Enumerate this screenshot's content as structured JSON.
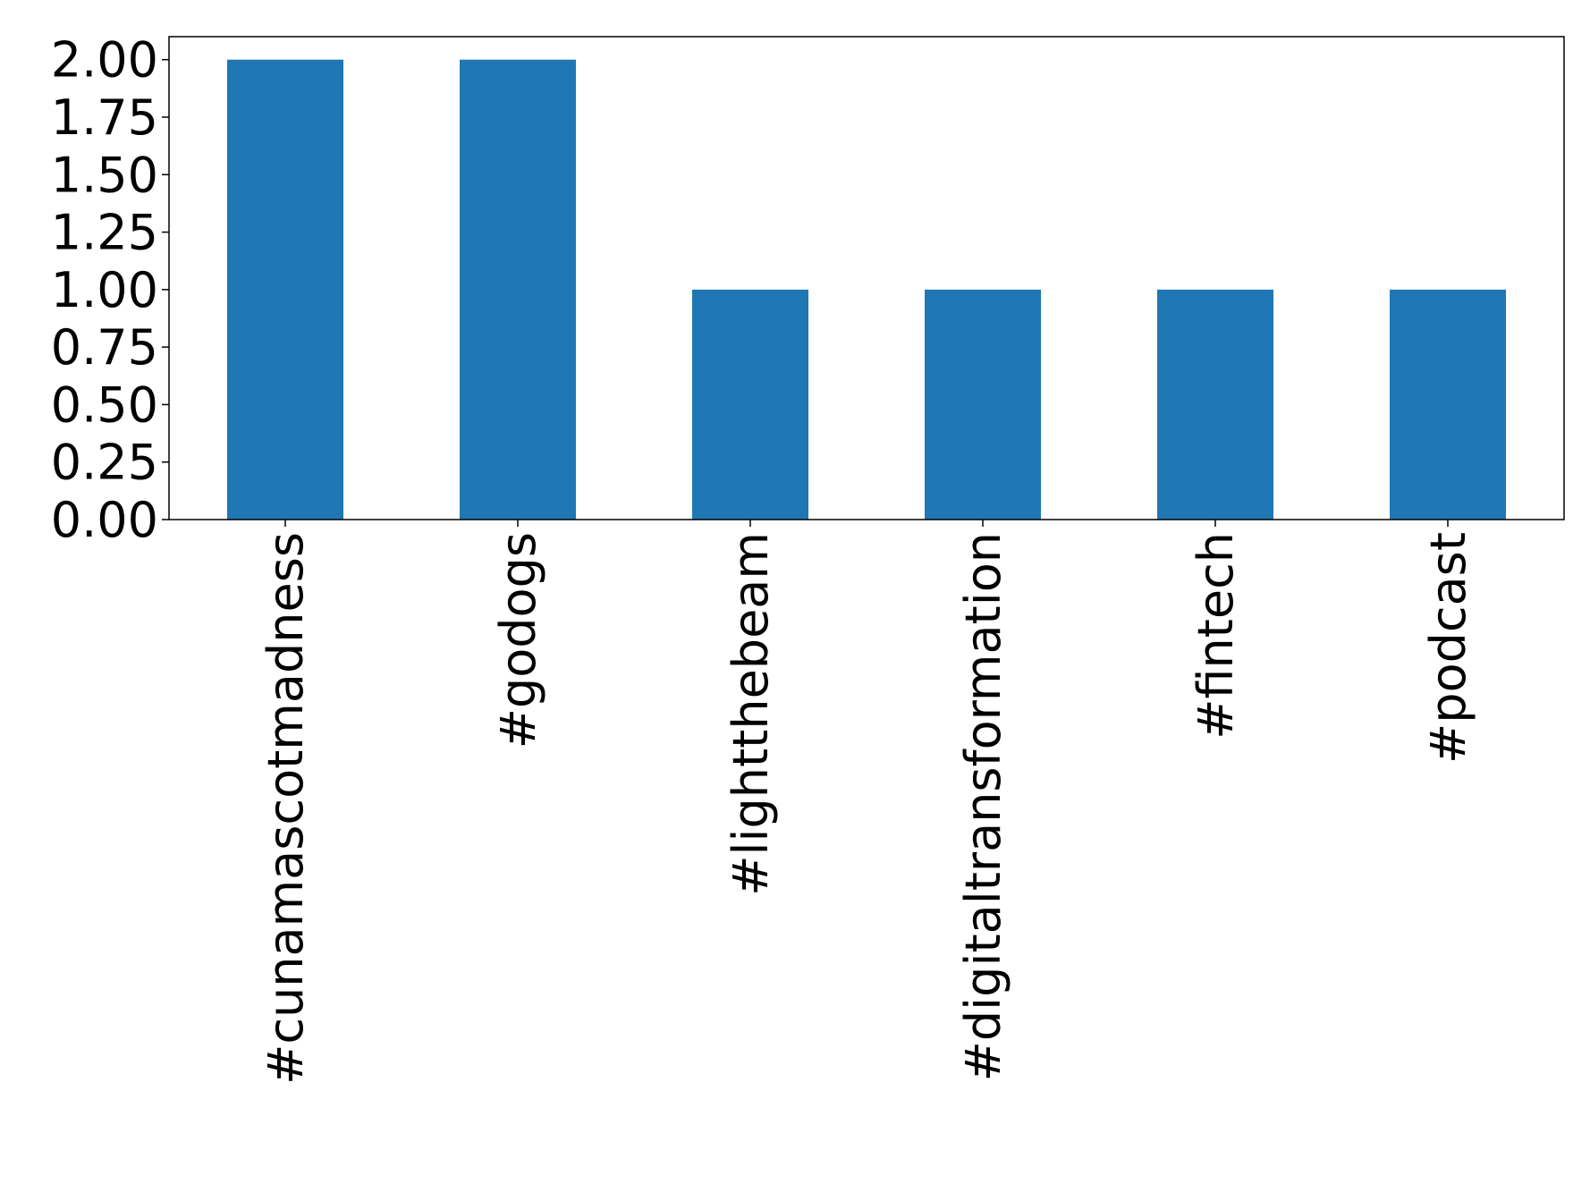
{
  "chart_data": {
    "type": "bar",
    "categories": [
      "#cunamascotmadness",
      "#godogs",
      "#lightthebeam",
      "#digitaltransformation",
      "#fintech",
      "#podcast"
    ],
    "values": [
      2,
      2,
      1,
      1,
      1,
      1
    ],
    "color": "#1f77b4",
    "ylim": [
      0,
      2.1
    ],
    "yticks": [
      {
        "value": 0,
        "label": "0.00"
      },
      {
        "value": 0.25,
        "label": "0.25"
      },
      {
        "value": 0.5,
        "label": "0.50"
      },
      {
        "value": 0.75,
        "label": "0.75"
      },
      {
        "value": 1,
        "label": "1.00"
      },
      {
        "value": 1.25,
        "label": "1.25"
      },
      {
        "value": 1.5,
        "label": "1.50"
      },
      {
        "value": 1.75,
        "label": "1.75"
      },
      {
        "value": 2,
        "label": "2.00"
      }
    ],
    "grid": false
  }
}
